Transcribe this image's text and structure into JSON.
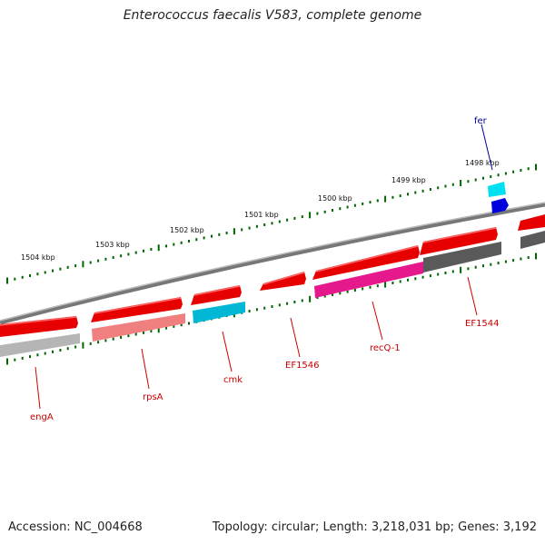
{
  "title": "Enterococcus faecalis V583, complete genome",
  "footer": {
    "accession": "Accession: NC_004668",
    "summary": "Topology: circular; Length: 3,218,031 bp; Genes: 3,192"
  },
  "scale_labels": [
    "1504 kbp",
    "1503 kbp",
    "1502 kbp",
    "1501 kbp",
    "1500 kbp",
    "1499 kbp",
    "1498 kbp"
  ],
  "gene_labels": [
    {
      "id": "engA",
      "text": "engA"
    },
    {
      "id": "rpsA",
      "text": "rpsA"
    },
    {
      "id": "cmk",
      "text": "cmk"
    },
    {
      "id": "EF1546",
      "text": "EF1546"
    },
    {
      "id": "recQ-1",
      "text": "recQ-1"
    },
    {
      "id": "EF1544",
      "text": "EF1544"
    },
    {
      "id": "fer",
      "text": "fer"
    }
  ],
  "colors": {
    "cds": "#e60000",
    "backbone": "#808080",
    "tick": "#006600",
    "label": "#cc0000",
    "fer_label": "#000099",
    "cyan": "#00c8dc",
    "magenta": "#e6198c",
    "pink": "#f08080",
    "dark_gray": "#5a5a5a",
    "blue": "#0000dc"
  }
}
